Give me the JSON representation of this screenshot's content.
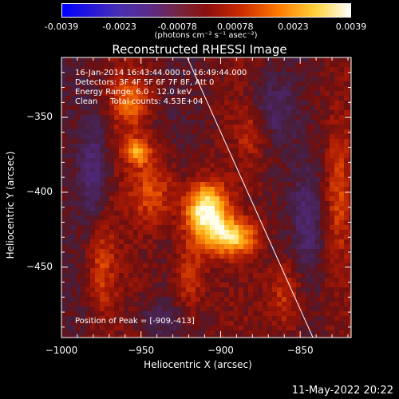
{
  "colorbar": {
    "ticks": [
      "-0.0039",
      "-0.0023",
      "-0.00078",
      "0.00078",
      "0.0023",
      "0.0039"
    ],
    "unit": "(photons cm⁻² s⁻¹ asec⁻²)",
    "colors": [
      "#0000ff",
      "#5a2c8a",
      "#8a0f0f",
      "#ff7a00",
      "#ffffff"
    ]
  },
  "chart_data": {
    "type": "heatmap",
    "title": "Reconstructed RHESSI Image",
    "xlabel": "Heliocentric X (arcsec)",
    "ylabel": "Heliocentric Y (arcsec)",
    "xlim": [
      -1000,
      -818
    ],
    "ylim": [
      -497,
      -310
    ],
    "x_ticks": [
      -1000,
      -950,
      -900,
      -850
    ],
    "y_ticks": [
      -350,
      -400,
      -450
    ],
    "x_tick_labels": [
      "−1000",
      "−950",
      "−900",
      "−850"
    ],
    "y_tick_labels": [
      "−350",
      "−400",
      "−450"
    ],
    "annotations": [
      "16-Jan-2014 16:43:44.000 to 16:49:44.000",
      "Detectors: 3F 4F 5F 6F 7F 8F, Att 0",
      "Energy Range: 6.0 - 12.0 keV",
      "Clean     Total counts: 4.53E+04"
    ],
    "peak_text": "Position of Peak = [-909,-413]",
    "peak": [
      -909,
      -413
    ],
    "limb_line": [
      [
        -921,
        -310
      ],
      [
        -842,
        -497
      ]
    ],
    "sources": [
      {
        "x": -909,
        "y": -413,
        "amp": 1.0,
        "sx": 9,
        "sy": 13
      },
      {
        "x": -893,
        "y": -430,
        "amp": 0.75,
        "sx": 10,
        "sy": 8
      },
      {
        "x": -952,
        "y": -373,
        "amp": 0.55,
        "sx": 6,
        "sy": 6
      },
      {
        "x": -957,
        "y": -340,
        "amp": 0.4,
        "sx": 8,
        "sy": 12
      },
      {
        "x": -942,
        "y": -400,
        "amp": 0.35,
        "sx": 10,
        "sy": 16
      },
      {
        "x": -975,
        "y": -450,
        "amp": 0.3,
        "sx": 6,
        "sy": 22
      },
      {
        "x": -920,
        "y": -455,
        "amp": 0.32,
        "sx": 7,
        "sy": 18
      },
      {
        "x": -860,
        "y": -470,
        "amp": 0.3,
        "sx": 8,
        "sy": 18
      },
      {
        "x": -826,
        "y": -400,
        "amp": 0.28,
        "sx": 5,
        "sy": 30
      },
      {
        "x": -880,
        "y": -360,
        "amp": 0.22,
        "sx": 7,
        "sy": 12
      }
    ],
    "negative_regions": [
      {
        "x": -980,
        "y": -385,
        "amp": 0.3,
        "sx": 6,
        "sy": 26
      },
      {
        "x": -868,
        "y": -345,
        "amp": 0.25,
        "sx": 9,
        "sy": 14
      },
      {
        "x": -845,
        "y": -420,
        "amp": 0.28,
        "sx": 6,
        "sy": 24
      },
      {
        "x": -940,
        "y": -485,
        "amp": 0.2,
        "sx": 10,
        "sy": 8
      }
    ]
  },
  "timestamp": "11-May-2022 20:22"
}
